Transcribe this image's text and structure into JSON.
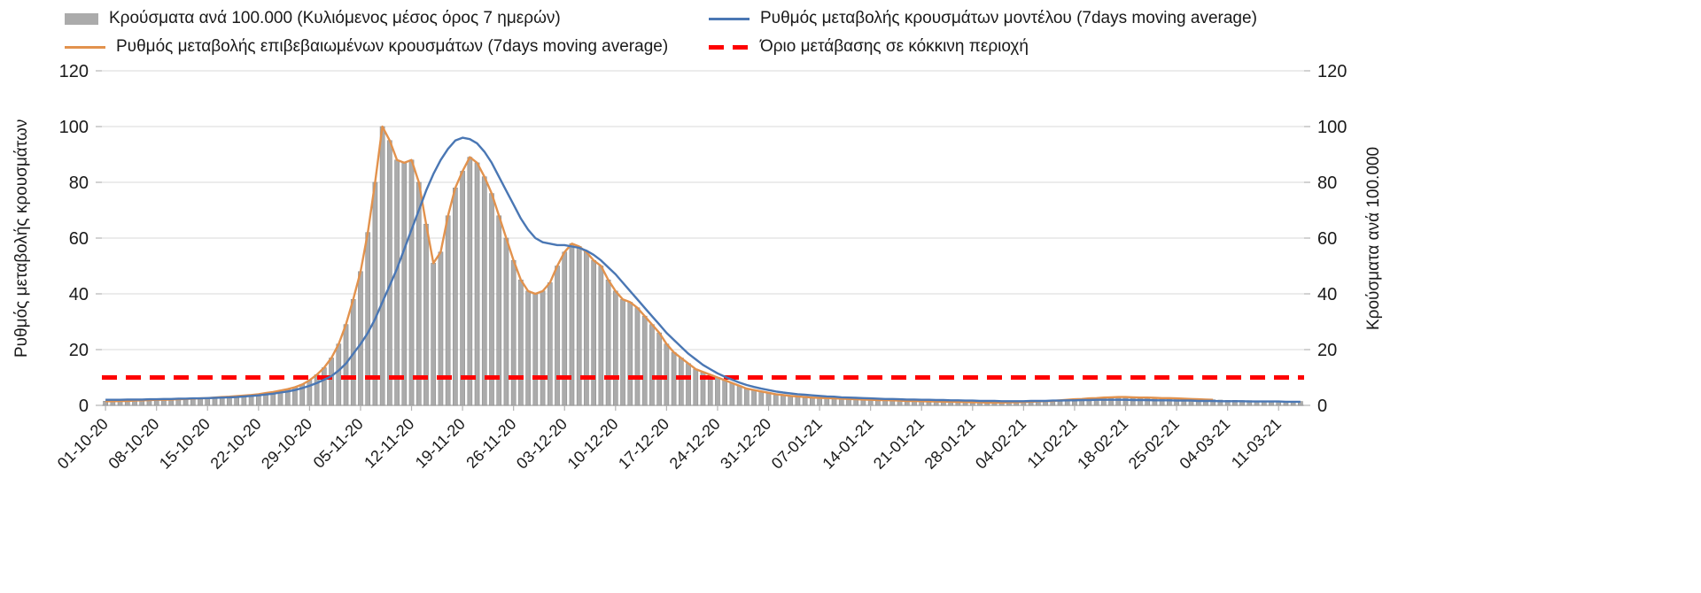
{
  "axes": {
    "left_label": "Ρυθμός μεταβολής κρουσμάτων",
    "right_label": "Κρούσματα ανά 100.000"
  },
  "colors": {
    "background": "#ffffff",
    "grid": "#d9d9d9",
    "axis": "#b3b3b3",
    "text": "#1a1a1a",
    "bars": "#ababab",
    "bar_outline": "#8f8f8f",
    "confirmed_line": "#e2924d",
    "model_line": "#4a77b4",
    "threshold_line": "#fe0000"
  },
  "chart_data": {
    "type": "combo-bar-line",
    "title": "",
    "x_start": "01-10-20",
    "x_end": "14-03-21",
    "frequency": "daily",
    "ylim": [
      0,
      120
    ],
    "y_ticks": [
      0,
      20,
      40,
      60,
      80,
      100,
      120
    ],
    "x_tick_every": 7,
    "x_tick_labels": [
      "01-10-20",
      "08-10-20",
      "15-10-20",
      "22-10-20",
      "29-10-20",
      "05-11-20",
      "12-11-20",
      "19-11-20",
      "26-11-20",
      "03-12-20",
      "10-12-20",
      "17-12-20",
      "24-12-20",
      "31-12-20",
      "07-01-21",
      "14-01-21",
      "21-01-21",
      "28-01-21",
      "04-02-21",
      "11-02-21",
      "18-02-21",
      "25-02-21",
      "04-03-21",
      "11-03-21"
    ],
    "series": [
      {
        "name": "Κρούσματα ανά 100.000 (Κυλιόμενος μέσος όρος 7 ημερών)",
        "type": "bar",
        "axis": "right",
        "color": "#ababab",
        "values": [
          1.5,
          1.5,
          1.6,
          1.6,
          1.7,
          1.8,
          1.9,
          2,
          2,
          2.1,
          2.2,
          2.3,
          2.4,
          2.5,
          2.6,
          2.8,
          3,
          3.1,
          3.3,
          3.5,
          3.7,
          4,
          4.4,
          4.8,
          5.3,
          5.8,
          6.5,
          7.5,
          9,
          11,
          13.5,
          17,
          22,
          29,
          38,
          48,
          62,
          80,
          100,
          95,
          88,
          87,
          88,
          80,
          65,
          51,
          55,
          68,
          78,
          84,
          89,
          87,
          82,
          76,
          68,
          60,
          52,
          45,
          41,
          40,
          41,
          44,
          50,
          55,
          58,
          57,
          55,
          52,
          50,
          45,
          41,
          38,
          37,
          35,
          32,
          29,
          26,
          22,
          19,
          17,
          15,
          13,
          12,
          11,
          10,
          9,
          8,
          7,
          6,
          5.5,
          5,
          4.5,
          4,
          3.7,
          3.4,
          3.2,
          3,
          2.8,
          2.7,
          2.6,
          2.5,
          2.4,
          2.3,
          2.2,
          2.1,
          2,
          1.9,
          1.9,
          1.8,
          1.7,
          1.6,
          1.6,
          1.5,
          1.4,
          1.4,
          1.3,
          1.3,
          1.2,
          1.2,
          1.1,
          1.1,
          1,
          1,
          1,
          1.1,
          1.1,
          1.2,
          1.3,
          1.4,
          1.5,
          1.6,
          1.8,
          2,
          2.2,
          2.3,
          2.5,
          2.6,
          2.8,
          2.9,
          3,
          3,
          2.9,
          2.8,
          2.8,
          2.7,
          2.6,
          2.6,
          2.5,
          2.4,
          2.3,
          2.2,
          2.1,
          2,
          1.9,
          1.8,
          1.8,
          1.7,
          1.7,
          1.6,
          1.6,
          1.5,
          1.5,
          1.5,
          1.4,
          1.4
        ]
      },
      {
        "name": "Ρυθμός μεταβολής επιβεβαιωμένων κρουσμάτων (7days moving average)",
        "type": "line",
        "axis": "left",
        "color": "#e2924d",
        "values": [
          1.5,
          1.5,
          1.6,
          1.6,
          1.7,
          1.8,
          1.9,
          2,
          2,
          2.1,
          2.2,
          2.3,
          2.4,
          2.5,
          2.6,
          2.8,
          3,
          3.1,
          3.3,
          3.5,
          3.7,
          4,
          4.4,
          4.8,
          5.3,
          5.8,
          6.5,
          7.5,
          9,
          11,
          13.5,
          17,
          22,
          29,
          38,
          48,
          62,
          80,
          100,
          95,
          88,
          87,
          88,
          80,
          65,
          51,
          55,
          68,
          78,
          84,
          89,
          87,
          82,
          76,
          68,
          60,
          52,
          45,
          41,
          40,
          41,
          44,
          50,
          55,
          58,
          57,
          55,
          52,
          50,
          45,
          41,
          38,
          37,
          35,
          32,
          29,
          26,
          22,
          19,
          17,
          15,
          13,
          12,
          11,
          10,
          9,
          8,
          7,
          6,
          5.5,
          5,
          4.5,
          4,
          3.7,
          3.4,
          3.2,
          3,
          2.8,
          2.7,
          2.6,
          2.5,
          2.4,
          2.3,
          2.2,
          2.1,
          2,
          1.9,
          1.9,
          1.8,
          1.7,
          1.6,
          1.6,
          1.5,
          1.4,
          1.4,
          1.3,
          1.3,
          1.2,
          1.2,
          1.1,
          1.1,
          1,
          1,
          1,
          1.1,
          1.1,
          1.2,
          1.3,
          1.4,
          1.5,
          1.6,
          1.8,
          2,
          2.2,
          2.3,
          2.5,
          2.6,
          2.8,
          2.9,
          3,
          3,
          2.9,
          2.8,
          2.8,
          2.7,
          2.6,
          2.6,
          2.5,
          2.4,
          2.3,
          2.2,
          2.1,
          2,
          null,
          null,
          null,
          null,
          null,
          null,
          null,
          null,
          null,
          null,
          null,
          null
        ]
      },
      {
        "name": "Ρυθμός μεταβολής κρουσμάτων μοντέλου (7days moving average)",
        "type": "line",
        "axis": "left",
        "color": "#4a77b4",
        "values": [
          2,
          2,
          2,
          2.1,
          2.1,
          2.1,
          2.2,
          2.2,
          2.3,
          2.3,
          2.4,
          2.4,
          2.5,
          2.5,
          2.6,
          2.7,
          2.8,
          2.9,
          3,
          3.2,
          3.4,
          3.6,
          3.9,
          4.2,
          4.6,
          5,
          5.5,
          6.2,
          7,
          8,
          9.2,
          10.5,
          12.5,
          15,
          18.5,
          22,
          26,
          31,
          37,
          43,
          49,
          56,
          63,
          70,
          77,
          83,
          88,
          92,
          95,
          96,
          95.5,
          94,
          91,
          87,
          82,
          77,
          72,
          67,
          63,
          60,
          58.5,
          58,
          57.5,
          57.5,
          57,
          56.5,
          55.5,
          54,
          52,
          49.5,
          47,
          44,
          41,
          38,
          35,
          32,
          29,
          26,
          23.5,
          21,
          18.5,
          16.5,
          14.5,
          13,
          11.5,
          10.3,
          9.2,
          8.2,
          7.3,
          6.6,
          6,
          5.5,
          5,
          4.6,
          4.3,
          4,
          3.8,
          3.6,
          3.4,
          3.2,
          3.1,
          2.9,
          2.8,
          2.7,
          2.6,
          2.5,
          2.4,
          2.3,
          2.3,
          2.2,
          2.1,
          2.1,
          2,
          2,
          1.9,
          1.9,
          1.8,
          1.8,
          1.7,
          1.7,
          1.6,
          1.6,
          1.6,
          1.5,
          1.5,
          1.5,
          1.5,
          1.6,
          1.6,
          1.6,
          1.7,
          1.7,
          1.8,
          1.8,
          1.9,
          1.9,
          2,
          2,
          2,
          2,
          2,
          1.9,
          1.9,
          1.9,
          1.8,
          1.8,
          1.8,
          1.7,
          1.7,
          1.7,
          1.6,
          1.6,
          1.6,
          1.5,
          1.5,
          1.5,
          1.5,
          1.4,
          1.4,
          1.4,
          1.4,
          1.4,
          1.3,
          1.3,
          1.3
        ]
      },
      {
        "name": "Όριο μετάβασης σε κόκκινη περιοχή",
        "type": "threshold-line",
        "axis": "left",
        "style": "dashed",
        "color": "#fe0000",
        "value": 10
      }
    ]
  }
}
